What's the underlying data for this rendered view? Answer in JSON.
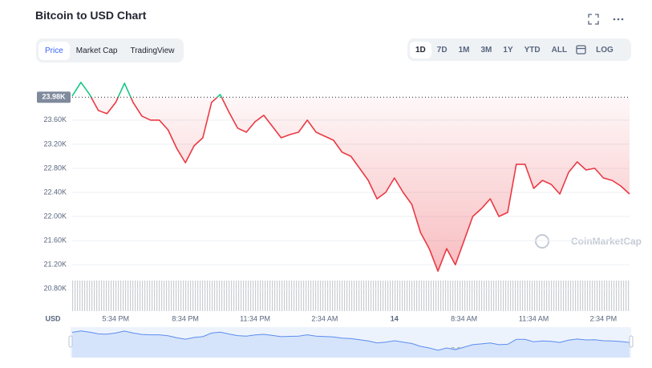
{
  "toolbar": {
    "title": "Bitcoin to USD Chart",
    "tabs": [
      "Price",
      "Market Cap",
      "TradingView"
    ],
    "ranges": [
      "1D",
      "7D",
      "1M",
      "3M",
      "1Y",
      "YTD",
      "ALL"
    ],
    "log": "LOG",
    "currency": "USD",
    "watermark": "CoinMarketCap"
  },
  "chart_data": {
    "type": "line",
    "categories": [
      null,
      null,
      null,
      null,
      null,
      "5:34 PM",
      null,
      null,
      null,
      null,
      null,
      null,
      null,
      "8:34 PM",
      null,
      null,
      null,
      null,
      null,
      null,
      null,
      "11:34 PM",
      null,
      null,
      null,
      null,
      null,
      null,
      null,
      "2:34 AM",
      null,
      null,
      null,
      null,
      null,
      null,
      null,
      "14",
      null,
      null,
      null,
      null,
      null,
      null,
      null,
      "8:34 AM",
      null,
      null,
      null,
      null,
      null,
      null,
      null,
      "11:34 AM",
      null,
      null,
      null,
      null,
      null,
      null,
      null,
      "2:34 PM",
      null,
      null,
      null
    ],
    "values": [
      24000,
      24227,
      24027,
      23760,
      23707,
      23893,
      24213,
      23893,
      23667,
      23600,
      23600,
      23440,
      23133,
      22893,
      23173,
      23307,
      23893,
      24027,
      23733,
      23467,
      23400,
      23573,
      23680,
      23493,
      23307,
      23360,
      23400,
      23600,
      23400,
      23333,
      23267,
      23067,
      23000,
      22800,
      22600,
      22293,
      22400,
      22640,
      22400,
      22200,
      21733,
      21467,
      21093,
      21467,
      21200,
      21600,
      22000,
      22133,
      22293,
      22000,
      22067,
      22867,
      22867,
      22467,
      22600,
      22533,
      22373,
      22733,
      22907,
      22773,
      22800,
      22640,
      22600,
      22507,
      22373
    ],
    "reference": {
      "value": 23980,
      "label": "23.98K"
    },
    "color_above": "#16c784",
    "color_below": "#ea3943",
    "ylim": [
      20430,
      24330
    ],
    "yticks": [
      {
        "value": 20800,
        "label": "20.80K"
      },
      {
        "value": 21200,
        "label": "21.20K"
      },
      {
        "value": 21600,
        "label": "21.60K"
      },
      {
        "value": 22000,
        "label": "22.00K"
      },
      {
        "value": 22400,
        "label": "22.40K"
      },
      {
        "value": 22800,
        "label": "22.80K"
      },
      {
        "value": 23200,
        "label": "23.20K"
      },
      {
        "value": 23600,
        "label": "23.60K"
      }
    ],
    "grid": true
  }
}
